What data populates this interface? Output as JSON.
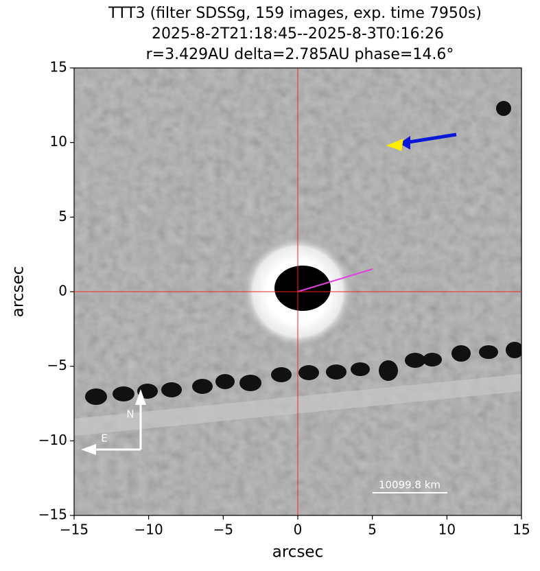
{
  "chart_data": {
    "type": "image",
    "title": "TTT3 (filter SDSSg, 159 images, exp. time 7950s)",
    "subtitle": "2025-8-2T21:18:45--2025-8-3T0:16:26",
    "subtitle2": "r=3.429AU delta=2.785AU phase=14.6°",
    "x_label": "arcsec",
    "y_label": "arcsec",
    "xlim": [
      -15,
      15
    ],
    "ylim": [
      -15,
      15
    ],
    "xticks": [
      {
        "value": -15,
        "label": "−15"
      },
      {
        "value": -10,
        "label": "−10"
      },
      {
        "value": -5,
        "label": "−5"
      },
      0,
      5,
      10,
      15
    ],
    "yticks": [
      {
        "value": -15,
        "label": "−15"
      },
      {
        "value": -10,
        "label": "−10"
      },
      {
        "value": -5,
        "label": "−5"
      },
      0,
      5,
      10,
      15
    ],
    "crosshair": {
      "x": 0,
      "y": 0,
      "color": "#ff2020"
    },
    "compass": {
      "north": "N",
      "east": "E"
    },
    "scale_bar_label": "10099.8 km"
  }
}
